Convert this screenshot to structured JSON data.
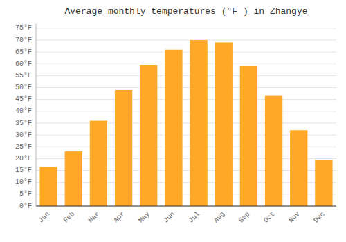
{
  "chart_data": {
    "type": "bar",
    "title": "Average monthly temperatures (°F ) in Zhangye",
    "categories": [
      "Jan",
      "Feb",
      "Mar",
      "Apr",
      "May",
      "Jun",
      "Jul",
      "Aug",
      "Sep",
      "Oct",
      "Nov",
      "Dec"
    ],
    "values": [
      16.5,
      23.0,
      36.0,
      49.0,
      59.5,
      66.0,
      70.0,
      69.0,
      59.0,
      46.5,
      32.0,
      19.5
    ],
    "color": "#FFA726",
    "ylim": [
      0,
      77
    ],
    "yticks": [
      {
        "value": 0,
        "label": "0°F"
      },
      {
        "value": 5,
        "label": "5°F"
      },
      {
        "value": 10,
        "label": "10°F"
      },
      {
        "value": 15,
        "label": "15°F"
      },
      {
        "value": 20,
        "label": "20°F"
      },
      {
        "value": 25,
        "label": "25°F"
      },
      {
        "value": 30,
        "label": "30°F"
      },
      {
        "value": 35,
        "label": "35°F"
      },
      {
        "value": 40,
        "label": "40°F"
      },
      {
        "value": 45,
        "label": "45°F"
      },
      {
        "value": 50,
        "label": "50°F"
      },
      {
        "value": 55,
        "label": "55°F"
      },
      {
        "value": 60,
        "label": "60°F"
      },
      {
        "value": 65,
        "label": "65°F"
      },
      {
        "value": 70,
        "label": "70°F"
      },
      {
        "value": 75,
        "label": "75°F"
      }
    ],
    "grid": true
  }
}
